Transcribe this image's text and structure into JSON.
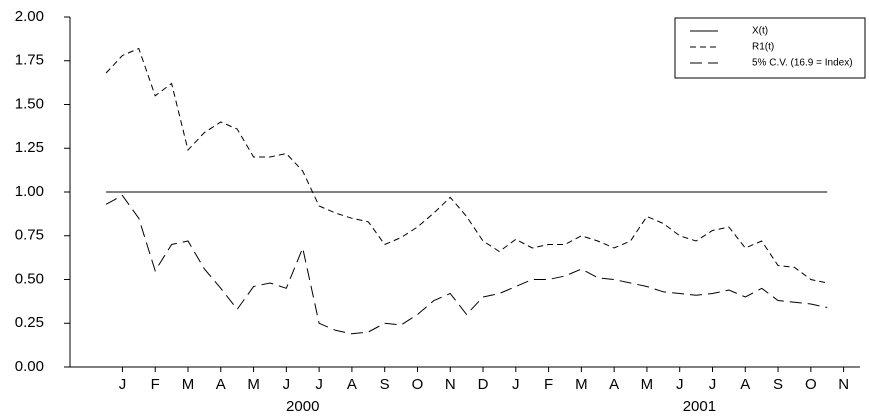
{
  "chart_data": {
    "type": "line",
    "x": [
      -0.5,
      0,
      0.5,
      1,
      1.5,
      2,
      2.5,
      3,
      3.5,
      4,
      4.5,
      5,
      5.5,
      6,
      6.5,
      7,
      7.5,
      8,
      8.5,
      9,
      9.5,
      10,
      10.5,
      11,
      11.5,
      12,
      12.5,
      13,
      13.5,
      14,
      14.5,
      15,
      15.5,
      16,
      16.5,
      17,
      17.5,
      18,
      18.5,
      19,
      19.5,
      20,
      20.5,
      21,
      21.5
    ],
    "series": [
      {
        "name": "X(t)",
        "color": "#000000",
        "dash": "none",
        "values": [
          1,
          1,
          1,
          1,
          1,
          1,
          1,
          1,
          1,
          1,
          1,
          1,
          1,
          1,
          1,
          1,
          1,
          1,
          1,
          1,
          1,
          1,
          1,
          1,
          1,
          1,
          1,
          1,
          1,
          1,
          1,
          1,
          1,
          1,
          1,
          1,
          1,
          1,
          1,
          1,
          1,
          1,
          1,
          1,
          1
        ]
      },
      {
        "name": "R1(t)",
        "color": "#000000",
        "dash": "6,4",
        "values": [
          1.68,
          1.78,
          1.82,
          1.55,
          1.62,
          1.24,
          1.34,
          1.4,
          1.36,
          1.2,
          1.2,
          1.22,
          1.12,
          0.92,
          0.88,
          0.85,
          0.83,
          0.7,
          0.74,
          0.8,
          0.88,
          0.97,
          0.86,
          0.72,
          0.66,
          0.73,
          0.68,
          0.7,
          0.7,
          0.75,
          0.72,
          0.68,
          0.72,
          0.86,
          0.82,
          0.75,
          0.72,
          0.78,
          0.8,
          0.68,
          0.72,
          0.58,
          0.57,
          0.5,
          0.48
        ]
      },
      {
        "name": "5% C.V. (16.9 = Index)",
        "color": "#000000",
        "dash": "12,6",
        "values": [
          0.93,
          0.98,
          0.85,
          0.55,
          0.7,
          0.72,
          0.56,
          0.45,
          0.33,
          0.46,
          0.48,
          0.45,
          0.68,
          0.25,
          0.21,
          0.19,
          0.2,
          0.25,
          0.24,
          0.3,
          0.38,
          0.42,
          0.3,
          0.4,
          0.42,
          0.46,
          0.5,
          0.5,
          0.52,
          0.56,
          0.51,
          0.5,
          0.48,
          0.46,
          0.43,
          0.42,
          0.41,
          0.42,
          0.44,
          0.4,
          0.45,
          0.38,
          0.37,
          0.36,
          0.34
        ]
      }
    ],
    "xlim": [
      -1.6,
      22.5
    ],
    "xticks": [
      {
        "value": 0,
        "label": "J"
      },
      {
        "value": 1,
        "label": "F"
      },
      {
        "value": 2,
        "label": "M"
      },
      {
        "value": 3,
        "label": "A"
      },
      {
        "value": 4,
        "label": "M"
      },
      {
        "value": 5,
        "label": "J"
      },
      {
        "value": 6,
        "label": "J"
      },
      {
        "value": 7,
        "label": "A"
      },
      {
        "value": 8,
        "label": "S"
      },
      {
        "value": 9,
        "label": "O"
      },
      {
        "value": 10,
        "label": "N"
      },
      {
        "value": 11,
        "label": "D"
      },
      {
        "value": 12,
        "label": "J"
      },
      {
        "value": 13,
        "label": "F"
      },
      {
        "value": 14,
        "label": "M"
      },
      {
        "value": 15,
        "label": "A"
      },
      {
        "value": 16,
        "label": "M"
      },
      {
        "value": 17,
        "label": "J"
      },
      {
        "value": 18,
        "label": "J"
      },
      {
        "value": 19,
        "label": "A"
      },
      {
        "value": 20,
        "label": "S"
      },
      {
        "value": 21,
        "label": "O"
      },
      {
        "value": 22,
        "label": "N"
      }
    ],
    "year_ticks": [
      {
        "value": 5.5,
        "label": "2000"
      },
      {
        "value": 17.6,
        "label": "2001"
      }
    ],
    "ylim": [
      0,
      2
    ],
    "yticks": [
      {
        "value": 0,
        "label": "0.00"
      },
      {
        "value": 0.25,
        "label": "0.25"
      },
      {
        "value": 0.5,
        "label": "0.50"
      },
      {
        "value": 0.75,
        "label": "0.75"
      },
      {
        "value": 1,
        "label": "1.00"
      },
      {
        "value": 1.25,
        "label": "1.25"
      },
      {
        "value": 1.5,
        "label": "1.50"
      },
      {
        "value": 1.75,
        "label": "1.75"
      },
      {
        "value": 2,
        "label": "2.00"
      }
    ],
    "legend": "top-right"
  }
}
